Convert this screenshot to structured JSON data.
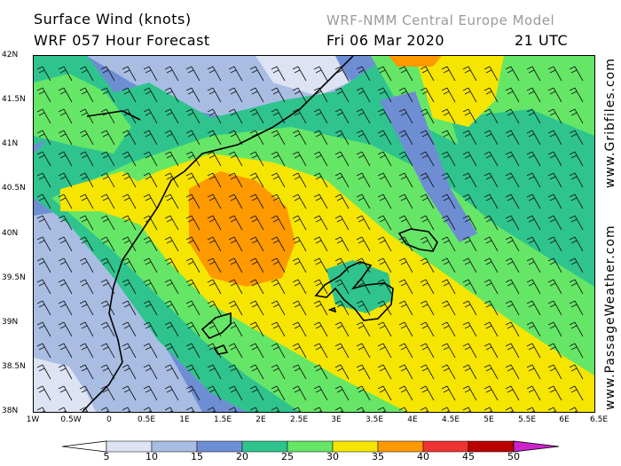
{
  "header": {
    "title_line1": "Surface Wind (knots)",
    "title_line2": "WRF 057 Hour Forecast",
    "model": "WRF-NMM Central Europe Model",
    "date": "Fri 06 Mar 2020",
    "time": "21 UTC"
  },
  "side_labels": {
    "right_top": "www.Gribfiles.com",
    "right_bottom": "www.PassageWeather.com"
  },
  "axes": {
    "lat_labels": [
      "42N",
      "41.5N",
      "41N",
      "40.5N",
      "40N",
      "39.5N",
      "39N",
      "38.5N",
      "38N"
    ],
    "lon_labels": [
      "1W",
      "0.5W",
      "0",
      "0.5E",
      "1E",
      "1.5E",
      "2E",
      "2.5E",
      "3E",
      "3.5E",
      "4E",
      "4.5E",
      "5E",
      "5.5E",
      "6E",
      "6.5E"
    ]
  },
  "colorbar": {
    "labels": [
      "5",
      "10",
      "15",
      "20",
      "25",
      "30",
      "35",
      "40",
      "45",
      "50"
    ],
    "colors": [
      "#ffffff",
      "#dde3f3",
      "#a9bde3",
      "#6d8ed3",
      "#2fc48d",
      "#66e666",
      "#f5e500",
      "#ff9900",
      "#ee3333",
      "#bb0000",
      "#aa0088",
      "#cc22cc"
    ]
  },
  "map_colors": {
    "c10": "#dde3f3",
    "c15": "#a9bde3",
    "c20": "#6d8ed3",
    "c25": "#2fc48d",
    "c30": "#66e666",
    "c35": "#f5e500",
    "c40": "#ff9900",
    "coast": "#000000"
  }
}
